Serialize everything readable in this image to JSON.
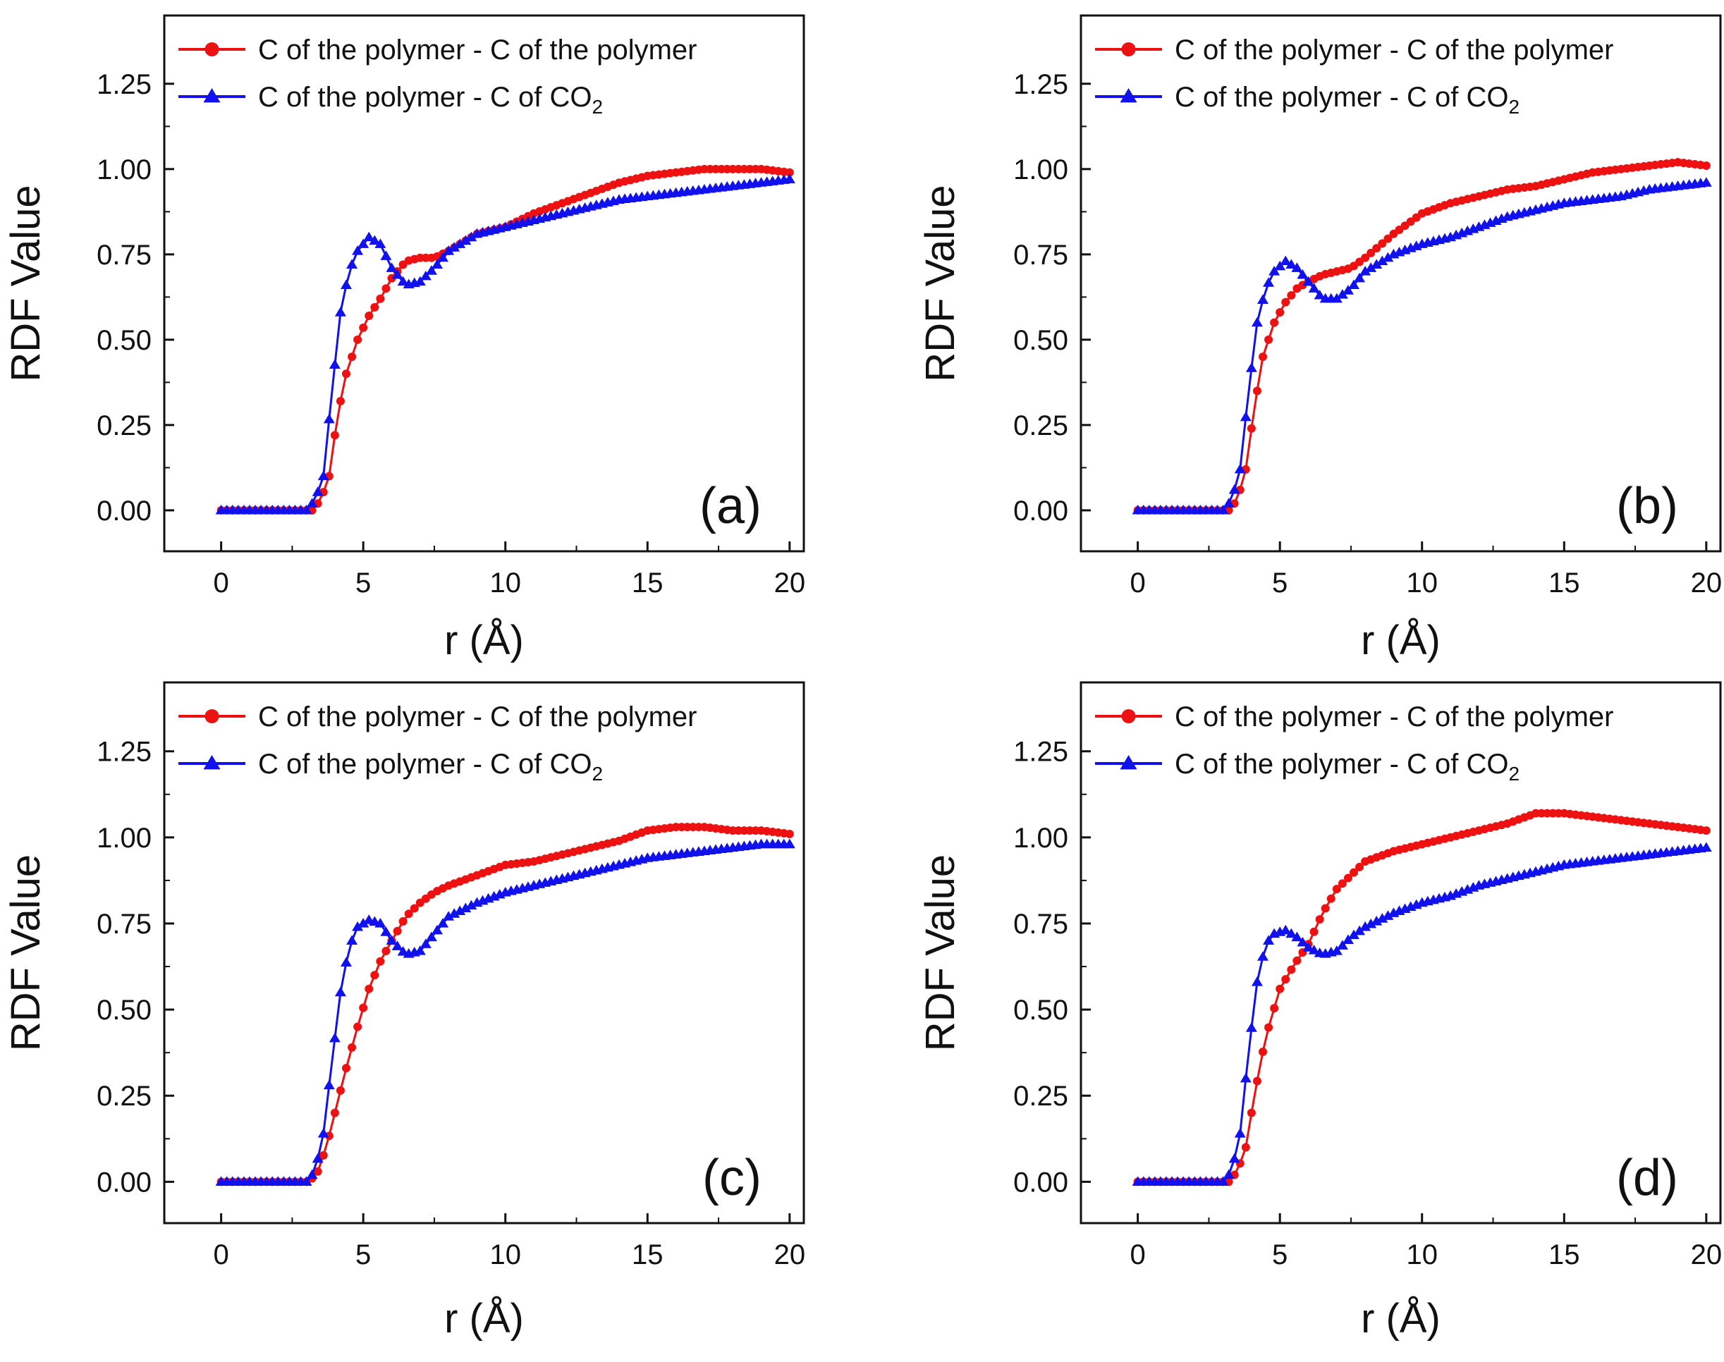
{
  "figure": {
    "description_free": true
  },
  "legend_labels": {
    "series_1": "C of the polymer - C of the polymer",
    "series_2_prefix": "C of the polymer - C of CO",
    "series_2_subscript": "2"
  },
  "colors": {
    "series_1": "#ee1111",
    "series_2": "#1111ee",
    "axis": "#111111"
  },
  "chart_data": [
    {
      "type": "line",
      "panel_label": "(a)",
      "xlabel": "r (Å)",
      "ylabel": "RDF Value",
      "xlim": [
        -2,
        20.5
      ],
      "ylim": [
        -0.12,
        1.45
      ],
      "xticks": [
        0,
        5,
        10,
        15,
        20
      ],
      "yticks": [
        0.0,
        0.25,
        0.5,
        0.75,
        1.0,
        1.25
      ],
      "series": [
        {
          "name": "C of the polymer - C of the polymer",
          "color": "#ee1111",
          "marker": "circle",
          "points": [
            [
              0,
              0
            ],
            [
              3.2,
              0
            ],
            [
              3.5,
              0.03
            ],
            [
              3.8,
              0.1
            ],
            [
              4.1,
              0.28
            ],
            [
              4.4,
              0.4
            ],
            [
              4.8,
              0.5
            ],
            [
              5.2,
              0.57
            ],
            [
              5.6,
              0.62
            ],
            [
              6,
              0.68
            ],
            [
              6.5,
              0.73
            ],
            [
              7,
              0.74
            ],
            [
              7.5,
              0.74
            ],
            [
              8,
              0.76
            ],
            [
              9,
              0.81
            ],
            [
              10,
              0.83
            ],
            [
              11,
              0.87
            ],
            [
              12,
              0.9
            ],
            [
              13,
              0.93
            ],
            [
              14,
              0.96
            ],
            [
              15,
              0.98
            ],
            [
              16,
              0.99
            ],
            [
              17,
              1.0
            ],
            [
              18,
              1.0
            ],
            [
              19,
              1.0
            ],
            [
              20,
              0.99
            ]
          ]
        },
        {
          "name": "C of the polymer - C of CO2",
          "color": "#1111ee",
          "marker": "triangle",
          "points": [
            [
              0,
              0
            ],
            [
              3,
              0
            ],
            [
              3.3,
              0.03
            ],
            [
              3.6,
              0.1
            ],
            [
              3.9,
              0.35
            ],
            [
              4.2,
              0.58
            ],
            [
              4.5,
              0.7
            ],
            [
              4.8,
              0.76
            ],
            [
              5.2,
              0.8
            ],
            [
              5.6,
              0.78
            ],
            [
              6,
              0.71
            ],
            [
              6.5,
              0.66
            ],
            [
              7,
              0.67
            ],
            [
              7.5,
              0.71
            ],
            [
              8,
              0.76
            ],
            [
              9,
              0.81
            ],
            [
              10,
              0.83
            ],
            [
              11,
              0.85
            ],
            [
              12,
              0.87
            ],
            [
              13,
              0.89
            ],
            [
              14,
              0.91
            ],
            [
              15,
              0.92
            ],
            [
              16,
              0.93
            ],
            [
              17,
              0.94
            ],
            [
              18,
              0.95
            ],
            [
              19,
              0.96
            ],
            [
              20,
              0.97
            ]
          ]
        }
      ]
    },
    {
      "type": "line",
      "panel_label": "(b)",
      "xlabel": "r (Å)",
      "ylabel": "RDF Value",
      "xlim": [
        -2,
        20.5
      ],
      "ylim": [
        -0.12,
        1.45
      ],
      "xticks": [
        0,
        5,
        10,
        15,
        20
      ],
      "yticks": [
        0.0,
        0.25,
        0.5,
        0.75,
        1.0,
        1.25
      ],
      "series": [
        {
          "name": "C of the polymer - C of the polymer",
          "color": "#ee1111",
          "marker": "circle",
          "points": [
            [
              0,
              0
            ],
            [
              3.2,
              0
            ],
            [
              3.5,
              0.03
            ],
            [
              3.8,
              0.12
            ],
            [
              4.1,
              0.3
            ],
            [
              4.4,
              0.45
            ],
            [
              4.8,
              0.55
            ],
            [
              5.2,
              0.61
            ],
            [
              5.6,
              0.65
            ],
            [
              6,
              0.67
            ],
            [
              6.5,
              0.69
            ],
            [
              7,
              0.7
            ],
            [
              7.5,
              0.71
            ],
            [
              8,
              0.74
            ],
            [
              9,
              0.81
            ],
            [
              10,
              0.87
            ],
            [
              11,
              0.9
            ],
            [
              12,
              0.92
            ],
            [
              13,
              0.94
            ],
            [
              14,
              0.95
            ],
            [
              15,
              0.97
            ],
            [
              16,
              0.99
            ],
            [
              17,
              1.0
            ],
            [
              18,
              1.01
            ],
            [
              19,
              1.02
            ],
            [
              20,
              1.01
            ]
          ]
        },
        {
          "name": "C of the polymer - C of CO2",
          "color": "#1111ee",
          "marker": "triangle",
          "points": [
            [
              0,
              0
            ],
            [
              3,
              0
            ],
            [
              3.3,
              0.03
            ],
            [
              3.6,
              0.12
            ],
            [
              3.9,
              0.35
            ],
            [
              4.2,
              0.55
            ],
            [
              4.5,
              0.65
            ],
            [
              4.8,
              0.7
            ],
            [
              5.2,
              0.73
            ],
            [
              5.6,
              0.71
            ],
            [
              6,
              0.67
            ],
            [
              6.5,
              0.62
            ],
            [
              7,
              0.62
            ],
            [
              7.5,
              0.65
            ],
            [
              8,
              0.7
            ],
            [
              9,
              0.75
            ],
            [
              10,
              0.78
            ],
            [
              11,
              0.8
            ],
            [
              12,
              0.83
            ],
            [
              13,
              0.86
            ],
            [
              14,
              0.88
            ],
            [
              15,
              0.9
            ],
            [
              16,
              0.91
            ],
            [
              17,
              0.92
            ],
            [
              18,
              0.94
            ],
            [
              19,
              0.95
            ],
            [
              20,
              0.96
            ]
          ]
        }
      ]
    },
    {
      "type": "line",
      "panel_label": "(c)",
      "xlabel": "r (Å)",
      "ylabel": "RDF Value",
      "xlim": [
        -2,
        20.5
      ],
      "ylim": [
        -0.12,
        1.45
      ],
      "xticks": [
        0,
        5,
        10,
        15,
        20
      ],
      "yticks": [
        0.0,
        0.25,
        0.5,
        0.75,
        1.0,
        1.25
      ],
      "series": [
        {
          "name": "C of the polymer - C of the polymer",
          "color": "#ee1111",
          "marker": "circle",
          "points": [
            [
              0,
              0
            ],
            [
              3.1,
              0
            ],
            [
              3.4,
              0.03
            ],
            [
              3.7,
              0.1
            ],
            [
              4.0,
              0.2
            ],
            [
              4.4,
              0.33
            ],
            [
              4.8,
              0.45
            ],
            [
              5.2,
              0.56
            ],
            [
              5.6,
              0.64
            ],
            [
              6,
              0.7
            ],
            [
              6.5,
              0.77
            ],
            [
              7,
              0.81
            ],
            [
              7.5,
              0.84
            ],
            [
              8,
              0.86
            ],
            [
              9,
              0.89
            ],
            [
              10,
              0.92
            ],
            [
              11,
              0.93
            ],
            [
              12,
              0.95
            ],
            [
              13,
              0.97
            ],
            [
              14,
              0.99
            ],
            [
              15,
              1.02
            ],
            [
              16,
              1.03
            ],
            [
              17,
              1.03
            ],
            [
              18,
              1.02
            ],
            [
              19,
              1.02
            ],
            [
              20,
              1.01
            ]
          ]
        },
        {
          "name": "C of the polymer - C of CO2",
          "color": "#1111ee",
          "marker": "triangle",
          "points": [
            [
              0,
              0
            ],
            [
              3,
              0
            ],
            [
              3.3,
              0.03
            ],
            [
              3.6,
              0.14
            ],
            [
              3.9,
              0.35
            ],
            [
              4.2,
              0.55
            ],
            [
              4.5,
              0.68
            ],
            [
              4.8,
              0.74
            ],
            [
              5.2,
              0.76
            ],
            [
              5.6,
              0.75
            ],
            [
              6,
              0.7
            ],
            [
              6.5,
              0.66
            ],
            [
              7,
              0.67
            ],
            [
              7.5,
              0.72
            ],
            [
              8,
              0.77
            ],
            [
              9,
              0.81
            ],
            [
              10,
              0.84
            ],
            [
              11,
              0.86
            ],
            [
              12,
              0.88
            ],
            [
              13,
              0.9
            ],
            [
              14,
              0.92
            ],
            [
              15,
              0.94
            ],
            [
              16,
              0.95
            ],
            [
              17,
              0.96
            ],
            [
              18,
              0.97
            ],
            [
              19,
              0.98
            ],
            [
              20,
              0.98
            ]
          ]
        }
      ]
    },
    {
      "type": "line",
      "panel_label": "(d)",
      "xlabel": "r (Å)",
      "ylabel": "RDF Value",
      "xlim": [
        -2,
        20.5
      ],
      "ylim": [
        -0.12,
        1.45
      ],
      "xticks": [
        0,
        5,
        10,
        15,
        20
      ],
      "yticks": [
        0.0,
        0.25,
        0.5,
        0.75,
        1.0,
        1.25
      ],
      "series": [
        {
          "name": "C of the polymer - C of the polymer",
          "color": "#ee1111",
          "marker": "circle",
          "points": [
            [
              0,
              0
            ],
            [
              3.2,
              0
            ],
            [
              3.5,
              0.03
            ],
            [
              3.8,
              0.1
            ],
            [
              4.1,
              0.25
            ],
            [
              4.5,
              0.42
            ],
            [
              5,
              0.56
            ],
            [
              5.5,
              0.63
            ],
            [
              6,
              0.69
            ],
            [
              6.5,
              0.78
            ],
            [
              7,
              0.85
            ],
            [
              8,
              0.93
            ],
            [
              9,
              0.96
            ],
            [
              10,
              0.98
            ],
            [
              11,
              1.0
            ],
            [
              12,
              1.02
            ],
            [
              13,
              1.04
            ],
            [
              14,
              1.07
            ],
            [
              15,
              1.07
            ],
            [
              16,
              1.06
            ],
            [
              17,
              1.05
            ],
            [
              18,
              1.04
            ],
            [
              19,
              1.03
            ],
            [
              20,
              1.02
            ]
          ]
        },
        {
          "name": "C of the polymer - C of CO2",
          "color": "#1111ee",
          "marker": "triangle",
          "points": [
            [
              0,
              0
            ],
            [
              3,
              0
            ],
            [
              3.3,
              0.03
            ],
            [
              3.6,
              0.14
            ],
            [
              3.9,
              0.38
            ],
            [
              4.2,
              0.58
            ],
            [
              4.5,
              0.69
            ],
            [
              4.8,
              0.72
            ],
            [
              5.2,
              0.73
            ],
            [
              5.6,
              0.71
            ],
            [
              6,
              0.68
            ],
            [
              6.5,
              0.66
            ],
            [
              7,
              0.67
            ],
            [
              7.5,
              0.71
            ],
            [
              8,
              0.74
            ],
            [
              9,
              0.78
            ],
            [
              10,
              0.81
            ],
            [
              11,
              0.83
            ],
            [
              12,
              0.86
            ],
            [
              13,
              0.88
            ],
            [
              14,
              0.9
            ],
            [
              15,
              0.92
            ],
            [
              16,
              0.93
            ],
            [
              17,
              0.94
            ],
            [
              18,
              0.95
            ],
            [
              19,
              0.96
            ],
            [
              20,
              0.97
            ]
          ]
        }
      ]
    }
  ]
}
